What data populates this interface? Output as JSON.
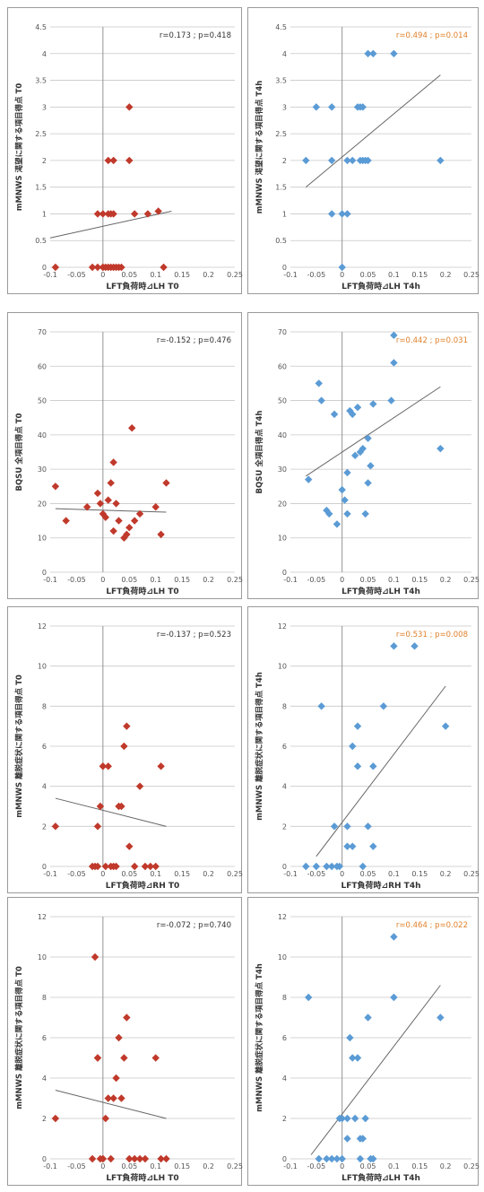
{
  "colors": {
    "red": "#c0392b",
    "blue": "#5b9bd5",
    "highlight": "#e0802a"
  },
  "chart_data": [
    {
      "type": "scatter",
      "marker": "diamond",
      "color": "#c0392b",
      "xlabel": "LFT負荷時⊿LH  T0",
      "ylabel": "mMNWS 渇望に関する項目得点  T0",
      "annotation": "r=0.173 ; p=0.418",
      "xlim": [
        -0.1,
        0.25
      ],
      "ylim": [
        0,
        4.5
      ],
      "xticks": [
        "-0.1",
        "-0.05",
        "0",
        "0.05",
        "0.1",
        "0.15",
        "0.2",
        "0.25"
      ],
      "yticks": [
        "0",
        "0.5",
        "1",
        "1.5",
        "2",
        "2.5",
        "3",
        "3.5",
        "4",
        "4.5"
      ],
      "trendline": [
        [
          -0.1,
          0.55
        ],
        [
          0.13,
          1.05
        ]
      ],
      "x": [
        -0.09,
        -0.02,
        -0.01,
        0,
        0,
        0.005,
        0.01,
        0.015,
        0.02,
        0.025,
        0.03,
        0.035,
        0.115,
        -0.01,
        0,
        0.01,
        0.015,
        0.02,
        0.06,
        0.085,
        0.105,
        0.01,
        0.02,
        0.05,
        0.05
      ],
      "y": [
        0,
        0,
        0,
        0,
        0,
        0,
        0,
        0,
        0,
        0,
        0,
        0,
        0,
        1,
        1,
        1,
        1,
        1,
        1,
        1,
        1.05,
        2,
        2,
        2,
        3
      ]
    },
    {
      "type": "scatter",
      "marker": "diamond",
      "color": "#5b9bd5",
      "xlabel": "LFT負荷時⊿LH  T4h",
      "ylabel": "mMNWS 渇望に関する項目得点  T4h",
      "annotation": "r=0.494 ; p=0.014",
      "annotation_color": "#e0802a",
      "xlim": [
        -0.1,
        0.25
      ],
      "ylim": [
        0,
        4.5
      ],
      "xticks": [
        "-0.1",
        "-0.05",
        "0",
        "0.05",
        "0.1",
        "0.15",
        "0.2",
        "0.25"
      ],
      "yticks": [
        "0",
        "0.5",
        "1",
        "1.5",
        "2",
        "2.5",
        "3",
        "3.5",
        "4",
        "4.5"
      ],
      "trendline": [
        [
          -0.07,
          1.5
        ],
        [
          0.19,
          3.6
        ]
      ],
      "x": [
        0,
        -0.02,
        0,
        0.01,
        -0.07,
        -0.02,
        0.01,
        0.02,
        0.035,
        0.04,
        0.045,
        0.05,
        0.19,
        -0.05,
        -0.02,
        0.03,
        0.035,
        0.04,
        0.05,
        0.06,
        0.1
      ],
      "y": [
        0,
        1,
        1,
        1,
        2,
        2,
        2,
        2,
        2,
        2,
        2,
        2,
        2,
        3,
        3,
        3,
        3,
        3,
        4,
        4,
        4
      ]
    },
    {
      "type": "scatter",
      "marker": "diamond",
      "color": "#c0392b",
      "xlabel": "LFT負荷時⊿LH  T0",
      "ylabel": "BQSU 全項目得点  T0",
      "annotation": "r=-0.152 ; p=0.476",
      "xlim": [
        -0.1,
        0.25
      ],
      "ylim": [
        0,
        70
      ],
      "xticks": [
        "-0.1",
        "-0.05",
        "0",
        "0.05",
        "0.1",
        "0.15",
        "0.2",
        "0.25"
      ],
      "yticks": [
        "0",
        "10",
        "20",
        "30",
        "40",
        "50",
        "60",
        "70"
      ],
      "trendline": [
        [
          -0.09,
          18.5
        ],
        [
          0.12,
          17.5
        ]
      ],
      "x": [
        -0.09,
        -0.07,
        -0.03,
        -0.01,
        -0.005,
        0,
        0.005,
        0.01,
        0.015,
        0.02,
        0.02,
        0.025,
        0.03,
        0.04,
        0.045,
        0.05,
        0.055,
        0.06,
        0.07,
        0.1,
        0.11,
        0.12
      ],
      "y": [
        25,
        15,
        19,
        23,
        20,
        17,
        16,
        21,
        26,
        32,
        12,
        20,
        15,
        10,
        11,
        13,
        42,
        15,
        17,
        19,
        11,
        26
      ]
    },
    {
      "type": "scatter",
      "marker": "diamond",
      "color": "#5b9bd5",
      "xlabel": "LFT負荷時⊿LH  T4h",
      "ylabel": "BQSU 全項目得点  T4h",
      "annotation": "r=0.442 ; p=0.031",
      "annotation_color": "#e0802a",
      "xlim": [
        -0.1,
        0.25
      ],
      "ylim": [
        0,
        70
      ],
      "xticks": [
        "-0.1",
        "-0.05",
        "0",
        "0.05",
        "0.1",
        "0.15",
        "0.2",
        "0.25"
      ],
      "yticks": [
        "0",
        "10",
        "20",
        "30",
        "40",
        "50",
        "60",
        "70"
      ],
      "trendline": [
        [
          -0.07,
          28
        ],
        [
          0.19,
          54
        ]
      ],
      "x": [
        -0.065,
        -0.045,
        -0.04,
        -0.03,
        -0.025,
        -0.015,
        -0.01,
        0,
        0.005,
        0.01,
        0.01,
        0.015,
        0.02,
        0.025,
        0.03,
        0.035,
        0.04,
        0.045,
        0.05,
        0.05,
        0.055,
        0.06,
        0.095,
        0.1,
        0.1,
        0.19
      ],
      "y": [
        27,
        55,
        50,
        18,
        17,
        46,
        14,
        24,
        21,
        17,
        29,
        47,
        46,
        34,
        48,
        35,
        36,
        17,
        26,
        39,
        31,
        49,
        50,
        61,
        69,
        36
      ]
    },
    {
      "type": "scatter",
      "marker": "diamond",
      "color": "#c0392b",
      "xlabel": "LFT負荷時⊿RH  T0",
      "ylabel": "mMNWS 離脱症状に関する項目得点  T0",
      "annotation": "r=-0.137 ; p=0.523",
      "xlim": [
        -0.1,
        0.25
      ],
      "ylim": [
        0,
        12
      ],
      "xticks": [
        "-0.1",
        "-0.05",
        "0",
        "0.05",
        "0.1",
        "0.15",
        "0.2",
        "0.25"
      ],
      "yticks": [
        "0",
        "2",
        "4",
        "6",
        "8",
        "10",
        "12"
      ],
      "trendline": [
        [
          -0.09,
          3.4
        ],
        [
          0.12,
          2.0
        ]
      ],
      "x": [
        -0.09,
        -0.02,
        -0.015,
        -0.01,
        -0.01,
        -0.005,
        0,
        0,
        0.005,
        0.01,
        0.015,
        0.02,
        0.025,
        0.03,
        0.035,
        0.04,
        0.045,
        0.05,
        0.06,
        0.07,
        0.08,
        0.09,
        0.1,
        0.11
      ],
      "y": [
        2,
        0,
        0,
        0,
        2,
        3,
        5,
        5,
        0,
        5,
        0,
        0,
        0,
        3,
        3,
        6,
        7,
        1,
        0,
        4,
        0,
        0,
        0,
        5
      ]
    },
    {
      "type": "scatter",
      "marker": "diamond",
      "color": "#5b9bd5",
      "xlabel": "LFT負荷時⊿RH  T4h",
      "ylabel": "mMNWS 離脱症状に関する項目得点  T4h",
      "annotation": "r=0.531 ; p=0.008",
      "annotation_color": "#e0802a",
      "xlim": [
        -0.1,
        0.25
      ],
      "ylim": [
        0,
        12
      ],
      "xticks": [
        "-0.1",
        "-0.05",
        "0",
        "0.05",
        "0.1",
        "0.15",
        "0.2",
        "0.25"
      ],
      "yticks": [
        "0",
        "2",
        "4",
        "6",
        "8",
        "10",
        "12"
      ],
      "trendline": [
        [
          -0.05,
          0.5
        ],
        [
          0.2,
          9.0
        ]
      ],
      "x": [
        -0.07,
        -0.05,
        -0.04,
        -0.03,
        -0.02,
        -0.015,
        -0.01,
        -0.005,
        0.01,
        0.02,
        0.03,
        0.04,
        0.05,
        0.06,
        0.08,
        0.1,
        0.14,
        0.2,
        0.01,
        0.02,
        0.03,
        0.06
      ],
      "y": [
        0,
        0,
        8,
        0,
        0,
        2,
        0,
        0,
        2,
        6,
        5,
        0,
        2,
        5,
        8,
        11,
        11,
        7,
        1,
        1,
        7,
        1
      ]
    },
    {
      "type": "scatter",
      "marker": "diamond",
      "color": "#c0392b",
      "xlabel": "LFT負荷時⊿LH  T0",
      "ylabel": "mMNWS 離脱症状に関する項目得点  T0",
      "annotation": "r=-0.072 ; p=0.740",
      "xlim": [
        -0.1,
        0.25
      ],
      "ylim": [
        0,
        12
      ],
      "xticks": [
        "-0.1",
        "-0.05",
        "0",
        "0.05",
        "0.1",
        "0.15",
        "0.2",
        "0.25"
      ],
      "yticks": [
        "0",
        "2",
        "4",
        "6",
        "8",
        "10",
        "12"
      ],
      "trendline": [
        [
          -0.09,
          3.4
        ],
        [
          0.12,
          2.0
        ]
      ],
      "x": [
        -0.09,
        -0.02,
        -0.015,
        -0.01,
        -0.01,
        -0.005,
        0,
        0,
        0.005,
        0.01,
        0.015,
        0.02,
        0.025,
        0.03,
        0.035,
        0.04,
        0.045,
        0.05,
        0.06,
        0.07,
        0.08,
        0.1,
        0.11,
        0.12
      ],
      "y": [
        2,
        0,
        10,
        5,
        5,
        0,
        0,
        0,
        2,
        3,
        0,
        3,
        4,
        6,
        3,
        5,
        7,
        0,
        0,
        0,
        0,
        5,
        0,
        0
      ]
    },
    {
      "type": "scatter",
      "marker": "diamond",
      "color": "#5b9bd5",
      "xlabel": "LFT負荷時⊿LH  T4h",
      "ylabel": "mMNWS 離脱症状に関する項目得点  T4h",
      "annotation": "r=0.464 ; p=0.022",
      "annotation_color": "#e0802a",
      "xlim": [
        -0.1,
        0.25
      ],
      "ylim": [
        0,
        12
      ],
      "xticks": [
        "-0.1",
        "-0.05",
        "0",
        "0.05",
        "0.1",
        "0.15",
        "0.2",
        "0.25"
      ],
      "yticks": [
        "0",
        "2",
        "4",
        "6",
        "8",
        "10",
        "12"
      ],
      "trendline": [
        [
          -0.06,
          0.2
        ],
        [
          0.19,
          8.6
        ]
      ],
      "x": [
        -0.065,
        -0.045,
        -0.03,
        -0.02,
        -0.01,
        -0.005,
        0,
        0,
        0.01,
        0.015,
        0.02,
        0.025,
        0.03,
        0.035,
        0.04,
        0.045,
        0.05,
        0.055,
        0.06,
        0.1,
        0.1,
        0.19,
        0.01,
        0.035
      ],
      "y": [
        8,
        0,
        0,
        0,
        0,
        2,
        2,
        0,
        1,
        6,
        5,
        2,
        5,
        1,
        1,
        2,
        7,
        0,
        0,
        11,
        8,
        7,
        2,
        0
      ]
    }
  ]
}
